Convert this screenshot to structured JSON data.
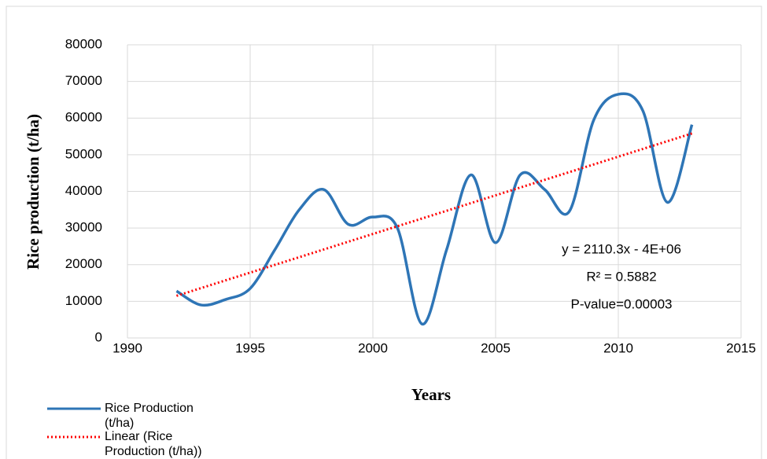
{
  "chart_data": {
    "type": "line",
    "x_label": "Years",
    "y_label": "Rice production (t/ha)",
    "x": [
      1992,
      1993,
      1994,
      1995,
      1996,
      1997,
      1998,
      1999,
      2000,
      2001,
      2002,
      2003,
      2004,
      2005,
      2006,
      2007,
      2008,
      2009,
      2010,
      2011,
      2012,
      2013
    ],
    "series": [
      {
        "name": "Rice Production (t/ha)",
        "color": "#2e75b6",
        "style": "solid",
        "values": [
          12800,
          9000,
          10500,
          13500,
          24000,
          35000,
          40500,
          31000,
          33000,
          30000,
          3800,
          24000,
          44500,
          26000,
          44500,
          40500,
          34500,
          59500,
          66500,
          62000,
          37000,
          58200
        ]
      },
      {
        "name": "Linear (Rice Production (t/ha))",
        "color": "#ff0000",
        "style": "dotted",
        "x": [
          1992,
          2013
        ],
        "values": [
          11500,
          55800
        ]
      }
    ],
    "annotations": [
      "y = 2110.3x - 4E+06",
      "R² = 0.5882",
      "P-value=0.00003"
    ],
    "xlim": [
      1990,
      2015
    ],
    "xticks": [
      1990,
      1995,
      2000,
      2005,
      2010,
      2015
    ],
    "ylim": [
      0,
      80000
    ],
    "yticks": [
      0,
      10000,
      20000,
      30000,
      40000,
      50000,
      60000,
      70000,
      80000
    ],
    "grid": true,
    "legend": "bottom-left"
  }
}
